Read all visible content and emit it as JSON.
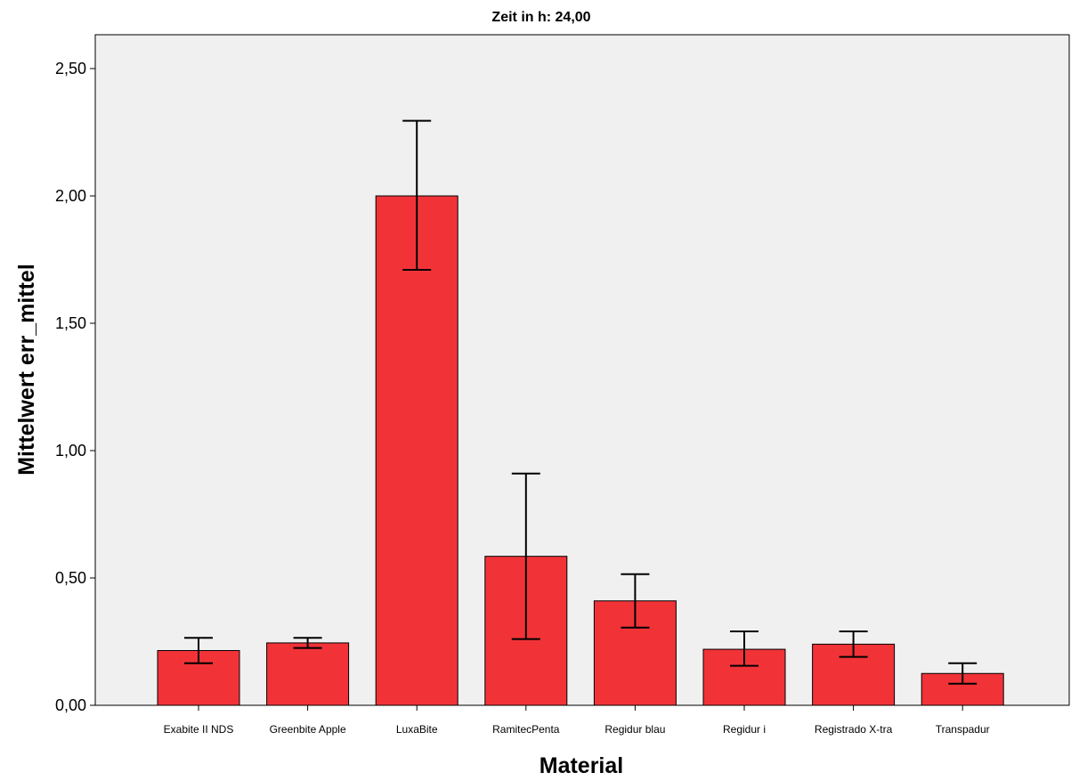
{
  "chart_data": {
    "type": "bar",
    "title": "Zeit in h: 24,00",
    "xlabel": "Material",
    "ylabel": "Mittelwert err_mittel",
    "categories": [
      "Exabite II NDS",
      "Greenbite Apple",
      "LuxaBite",
      "RamitecPenta",
      "Regidur blau",
      "Regidur i",
      "Registrado X-tra",
      "Transpadur"
    ],
    "values": [
      0.215,
      0.245,
      2.0,
      0.585,
      0.41,
      0.22,
      0.24,
      0.125
    ],
    "error_low": [
      0.165,
      0.225,
      1.71,
      0.26,
      0.305,
      0.155,
      0.19,
      0.085
    ],
    "error_high": [
      0.265,
      0.265,
      2.295,
      0.91,
      0.515,
      0.29,
      0.29,
      0.165
    ],
    "yticks": [
      "0,00",
      "0,50",
      "1,00",
      "1,50",
      "2,00",
      "2,50"
    ],
    "ytick_values": [
      0,
      0.5,
      1.0,
      1.5,
      2.0,
      2.5
    ],
    "ylim": [
      0,
      2.63
    ],
    "grid": false,
    "bar_color": "#f13338",
    "plot_background": "#f0f0f0"
  }
}
